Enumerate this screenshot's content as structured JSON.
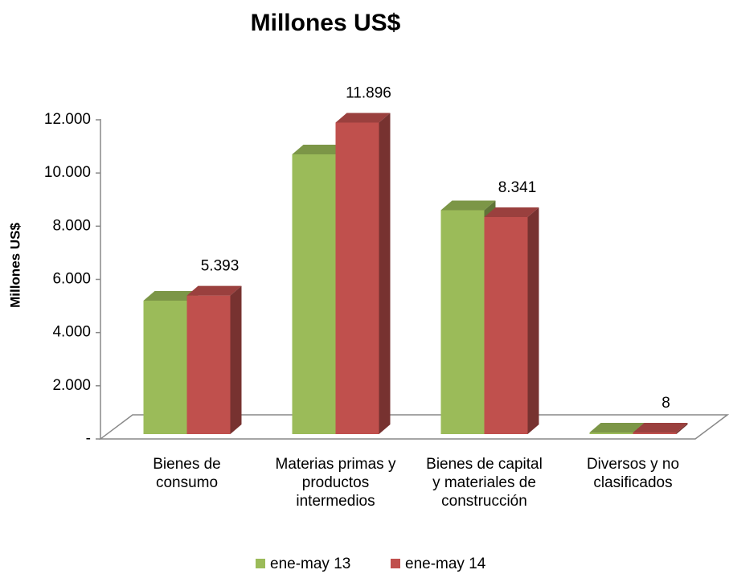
{
  "chart_data": {
    "type": "bar3d",
    "title": "Millones US$",
    "y_label": "Millones US$",
    "categories": [
      "Bienes de consumo",
      "Materias primas y productos intermedios",
      "Bienes de capital y materiales de construcción",
      "Diversos y no clasificados"
    ],
    "series": [
      {
        "name": "ene-may 13",
        "color": "#9bbb59",
        "values": [
          5200,
          10700,
          8600,
          10
        ]
      },
      {
        "name": "ene-may 14",
        "color": "#c0504d",
        "values": [
          5393,
          11896,
          8341,
          8
        ],
        "value_labels": [
          "5.393",
          "11.896",
          "8.341",
          "8"
        ]
      }
    ],
    "ylim": [
      0,
      12000
    ],
    "yticks": [
      {
        "value": 0,
        "label": "-"
      },
      {
        "value": 2000,
        "label": "2.000"
      },
      {
        "value": 4000,
        "label": "4.000"
      },
      {
        "value": 6000,
        "label": "6.000"
      },
      {
        "value": 8000,
        "label": "8.000"
      },
      {
        "value": 10000,
        "label": "10.000"
      },
      {
        "value": 12000,
        "label": "12.000"
      }
    ],
    "grid": false,
    "legend": "bottom"
  }
}
